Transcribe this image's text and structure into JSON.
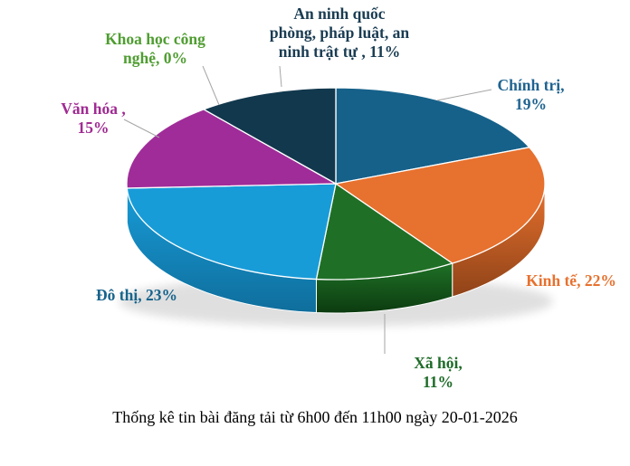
{
  "page": {
    "background": "#FFFFFF"
  },
  "chart_data": {
    "type": "pie",
    "style": "3d-pie",
    "title": "Thống kê tin bài đăng tải từ 6h00 đến 11h00 ngày 20-01-2026",
    "legend_position": "none",
    "labels_format": "category, percent",
    "leader_line_color": "#A6A6A6",
    "slices": [
      {
        "name": "Chính trị",
        "value": 19,
        "color": "#16618A",
        "side_color": "#0C3F5C",
        "label_color": "#1F6390",
        "label_lines": [
          "Chính trị,",
          "19%"
        ]
      },
      {
        "name": "Kinh tế",
        "value": 22,
        "color": "#E7712E",
        "side_color": "#8F4318",
        "label_color": "#E7712E",
        "label_lines": [
          "Kinh tế, 22%"
        ]
      },
      {
        "name": "Xã hội",
        "value": 11,
        "color": "#1F7026",
        "side_color": "#0C3B10",
        "label_color": "#1E6B28",
        "label_lines": [
          "Xã hội,",
          "11%"
        ]
      },
      {
        "name": "Đô thị",
        "value": 23,
        "color": "#189CD8",
        "side_color": "#0F6E9C",
        "label_color": "#17648C",
        "label_lines": [
          "Đô thị, 23%"
        ]
      },
      {
        "name": "Văn hóa",
        "value": 15,
        "color": "#A02C99",
        "side_color": "#651C60",
        "label_color": "#A02B93",
        "label_lines": [
          "Văn hóa ,",
          "15%"
        ]
      },
      {
        "name": "Khoa học công nghệ",
        "value": 0,
        "color": "#4EA72E",
        "side_color": "#2F6A1C",
        "label_color": "#4F9D31",
        "label_lines": [
          "Khoa học công",
          "nghệ, 0%"
        ]
      },
      {
        "name": "An ninh quốc phòng, pháp luật, an ninh trật tự",
        "value": 11,
        "color": "#12384D",
        "side_color": "#081E2B",
        "label_color": "#1A3C52",
        "label_lines": [
          "An ninh quốc",
          "phòng, pháp luật, an",
          "ninh trật tự , 11%"
        ]
      }
    ]
  },
  "caption": {
    "text": "Thống kê tin bài đăng tải từ 6h00 đến 11h00 ngày 20-01-2026",
    "color": "#000000"
  }
}
